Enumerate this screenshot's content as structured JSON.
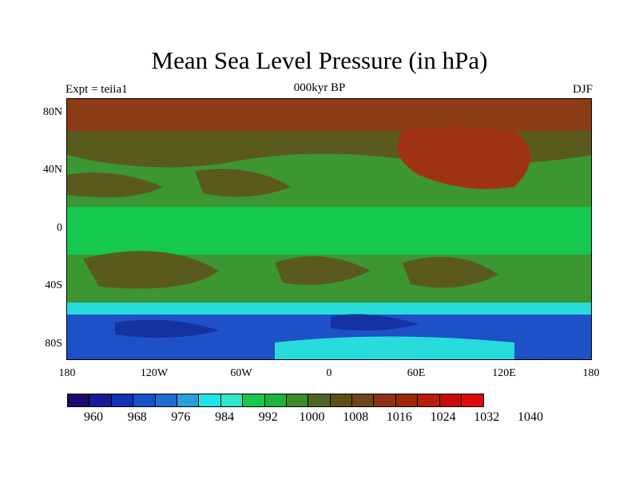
{
  "title": "Mean Sea Level Pressure (in hPa)",
  "left_label": "Expt = teiia1",
  "center_label": "000kyr BP",
  "right_label": "DJF",
  "lat_labels": [
    "80N",
    "40N",
    "0",
    "40S",
    "80S"
  ],
  "lon_labels": [
    "180",
    "120W",
    "60W",
    "0",
    "60E",
    "120E",
    "180"
  ],
  "colorbar": {
    "colors": [
      "#1e0a6e",
      "#1a1a96",
      "#1432b4",
      "#1450c8",
      "#1e6ed2",
      "#28a0dc",
      "#1ee6e6",
      "#32e6c8",
      "#14c850",
      "#1eb43c",
      "#3c8c28",
      "#506428",
      "#5a5014",
      "#6e461e",
      "#8c3214",
      "#a0280a",
      "#b41e0a",
      "#c80a0a",
      "#dc0a0a"
    ],
    "labels": [
      "960",
      "968",
      "976",
      "984",
      "992",
      "1000",
      "1008",
      "1016",
      "1024",
      "1032",
      "1040"
    ]
  },
  "map_colors": {
    "ocean_high": "#5a5a1e",
    "subtropical_high": "#6e5a1e",
    "tropics": "#14c850",
    "mid_green": "#3c9632",
    "polar_high": "#8c3c14",
    "siberian_high": "#a03214",
    "southern_low": "#1e50c8",
    "deep_low": "#1432a0",
    "antarctic": "#28dcdc"
  }
}
